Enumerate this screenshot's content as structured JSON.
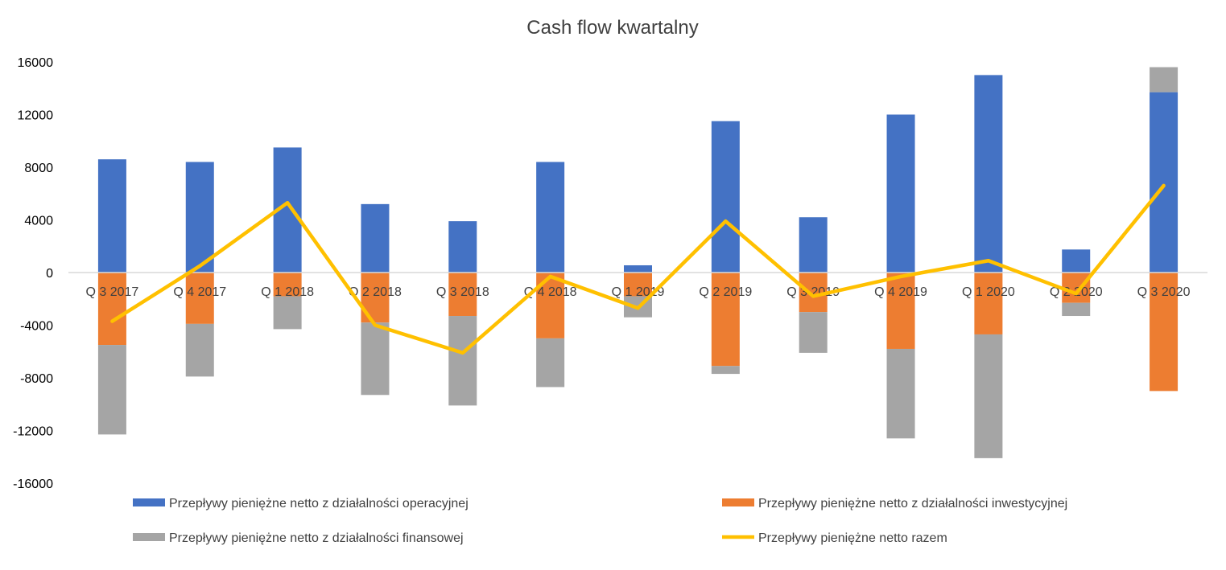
{
  "chart_data": {
    "type": "bar",
    "stacked": true,
    "title": "Cash flow kwartalny",
    "categories": [
      "Q 3 2017",
      "Q 4 2017",
      "Q 1 2018",
      "Q 2 2018",
      "Q 3 2018",
      "Q 4 2018",
      "Q 1 2019",
      "Q 2 2019",
      "Q 3 2019",
      "Q 4 2019",
      "Q 1 2020",
      "Q 2 2020",
      "Q 3 2020"
    ],
    "ylim": [
      -16000,
      16000
    ],
    "yticks": [
      "16000",
      "12000",
      "8000",
      "4000",
      "0",
      "-4000",
      "-8000",
      "-12000",
      "-16000"
    ],
    "grid": false,
    "legend_position": "bottom",
    "series": [
      {
        "name": "Przepływy pieniężne netto z działalności operacyjnej",
        "kind": "bar",
        "color": "#4472C4",
        "values": [
          8600,
          8400,
          9500,
          5200,
          3900,
          8400,
          550,
          11500,
          4200,
          12000,
          15000,
          1750,
          13700
        ]
      },
      {
        "name": "Przepływy pieniężne netto z działalności inwestycyjnej",
        "kind": "bar",
        "color": "#ED7D31",
        "values": [
          -5500,
          -3900,
          -1800,
          -3800,
          -3300,
          -5000,
          -1800,
          -7100,
          -3000,
          -5800,
          -4700,
          -2300,
          -9000
        ]
      },
      {
        "name": "Przepływy pieniężne netto z działalności finansowej",
        "kind": "bar",
        "color": "#A5A5A5",
        "values": [
          -6800,
          -4000,
          -2500,
          -5500,
          -6800,
          -3700,
          -1600,
          -600,
          -3100,
          -6800,
          -9400,
          -1000,
          1900
        ]
      },
      {
        "name": "Przepływy pieniężne netto razem",
        "kind": "line",
        "color": "#FFC000",
        "values": [
          -3700,
          500,
          5300,
          -4000,
          -6100,
          -300,
          -2700,
          3900,
          -1800,
          -300,
          900,
          -1600,
          6600
        ]
      }
    ]
  }
}
